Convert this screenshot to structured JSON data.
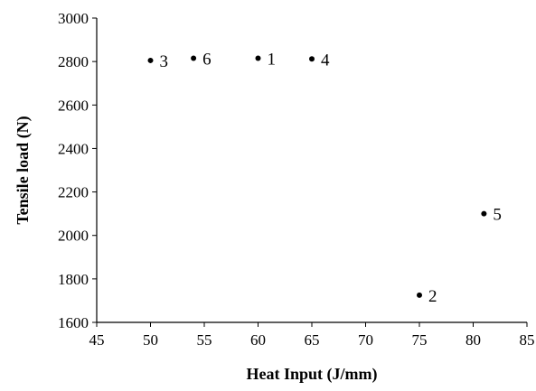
{
  "chart_data": {
    "type": "scatter",
    "xlabel": "Heat Input (J/mm)",
    "ylabel": "Tensile load (N)",
    "xlim": [
      45,
      85
    ],
    "ylim": [
      1600,
      3000
    ],
    "x_ticks": [
      45,
      50,
      55,
      60,
      65,
      70,
      75,
      80,
      85
    ],
    "y_ticks": [
      1600,
      1800,
      2000,
      2200,
      2400,
      2600,
      2800,
      3000
    ],
    "grid": false,
    "legend": "none",
    "series": [
      {
        "points": [
          {
            "x": 60,
            "y": 2815,
            "label": "1"
          },
          {
            "x": 75,
            "y": 1725,
            "label": "2"
          },
          {
            "x": 50,
            "y": 2805,
            "label": "3"
          },
          {
            "x": 65,
            "y": 2812,
            "label": "4"
          },
          {
            "x": 81,
            "y": 2100,
            "label": "5"
          },
          {
            "x": 54,
            "y": 2815,
            "label": "6"
          }
        ],
        "color": "#000000"
      }
    ]
  }
}
